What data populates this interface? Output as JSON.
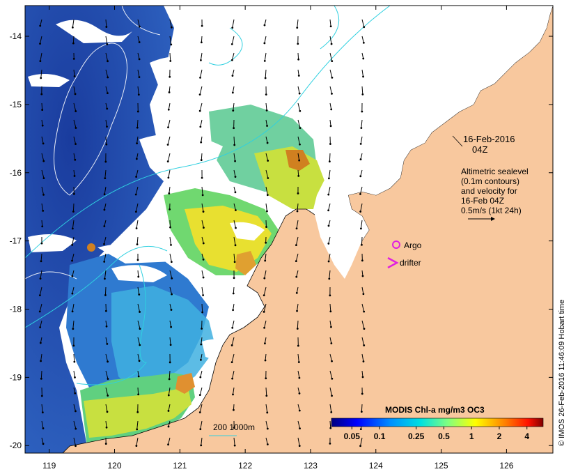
{
  "map": {
    "x_ticks": [
      "119",
      "120",
      "121",
      "122",
      "123",
      "124",
      "125",
      "126"
    ],
    "y_ticks": [
      "-14",
      "-15",
      "-16",
      "-17",
      "-18",
      "-19",
      "-20"
    ],
    "x_range": [
      118.63,
      126.71
    ],
    "y_range": [
      -20.11,
      -13.55
    ]
  },
  "annotation": {
    "date_line1": "16-Feb-2016",
    "date_line2": "04Z",
    "alt_lines": [
      "Altimetric sealevel",
      "(0.1m contours)",
      "and velocity for",
      "16-Feb 04Z",
      "0.5m/s (1kt 24h)"
    ]
  },
  "legend": {
    "argo_label": "Argo",
    "argo_color": "#e020e0",
    "drifter_label": "drifter",
    "drifter_color": "#e020e0"
  },
  "scale_label": "200  1000m",
  "colorbar": {
    "title": "MODIS Chl-a mg/m3 OC3",
    "ticks": [
      "0.05",
      "0.1",
      "0.25",
      "0.5",
      "1",
      "2",
      "4"
    ]
  },
  "credit": "© IMOS 26-Feb-2016 11:46:09 Hobart time",
  "colors": {
    "land": "#f8c89e",
    "contour": "#2fd0e0",
    "deep_blue": "#1c3aa0",
    "high_chl": "#d08020"
  }
}
